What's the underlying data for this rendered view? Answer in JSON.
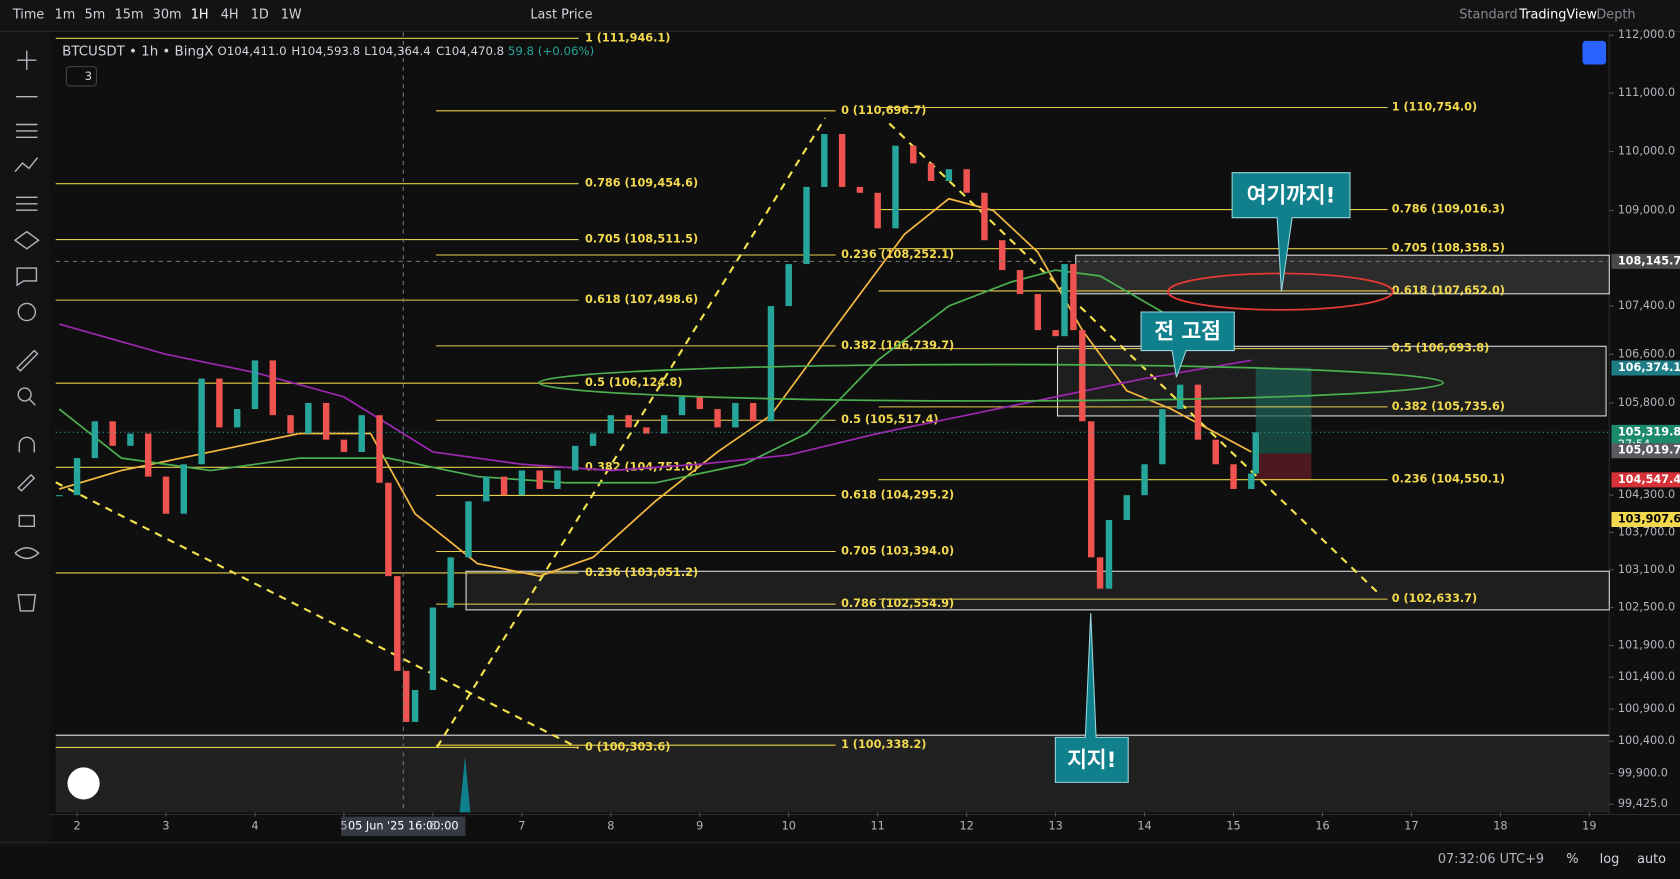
{
  "toolbar": {
    "items": [
      "Time",
      "1m",
      "5m",
      "15m",
      "30m",
      "1H",
      "4H",
      "1D",
      "1W"
    ],
    "price_source": "Last Price",
    "modes": [
      "Standard",
      "TradingView",
      "Depth"
    ]
  },
  "legend": {
    "symbol": "BTCUSDT • 1h • BingX",
    "open": "O104,411.0",
    "high": "H104,593.8",
    "low": "L104,364.4",
    "close": "C104,470.8",
    "change": "59.8 (+0.06%)",
    "indicator_count": 3
  },
  "chart": {
    "type": "candlestick",
    "log_scale": true,
    "xlim": [
      1.76,
      19.2
    ],
    "xticks": [
      2,
      3,
      4,
      5,
      6,
      7,
      8,
      9,
      10,
      11,
      12,
      13,
      14,
      15,
      16,
      17,
      18,
      19
    ],
    "ylim": [
      99300,
      112050
    ],
    "yticks": [
      {
        "value": 112000,
        "label": "112,000.0"
      },
      {
        "value": 111000,
        "label": "111,000.0"
      },
      {
        "value": 110000,
        "label": "110,000.0"
      },
      {
        "value": 109000,
        "label": "109,000.0"
      },
      {
        "value": 107400,
        "label": "107,400.0"
      },
      {
        "value": 106600,
        "label": "106,600.0"
      },
      {
        "value": 105800,
        "label": "105,800.0"
      },
      {
        "value": 104300,
        "label": "104,300.0"
      },
      {
        "value": 103700,
        "label": "103,700.0"
      },
      {
        "value": 103100,
        "label": "103,100.0"
      },
      {
        "value": 102500,
        "label": "102,500.0"
      },
      {
        "value": 101900,
        "label": "101,900.0"
      },
      {
        "value": 101400,
        "label": "101,400.0"
      },
      {
        "value": 100900,
        "label": "100,900.0"
      },
      {
        "value": 100400,
        "label": "100,400.0"
      },
      {
        "value": 99900,
        "label": "99,900.0"
      },
      {
        "value": 99425,
        "label": "99,425.0"
      }
    ],
    "candles": {
      "x": [
        1.8,
        2.0,
        2.2,
        2.4,
        2.6,
        2.8,
        3.0,
        3.2,
        3.4,
        3.6,
        3.8,
        4.0,
        4.2,
        4.4,
        4.6,
        4.8,
        5.0,
        5.2,
        5.4,
        5.5,
        5.6,
        5.7,
        5.8,
        6.0,
        6.2,
        6.4,
        6.6,
        6.8,
        7.0,
        7.2,
        7.4,
        7.6,
        7.8,
        8.0,
        8.2,
        8.4,
        8.6,
        8.8,
        9.0,
        9.2,
        9.4,
        9.6,
        9.8,
        10.0,
        10.2,
        10.4,
        10.6,
        10.8,
        11.0,
        11.2,
        11.4,
        11.6,
        11.8,
        12.0,
        12.2,
        12.4,
        12.6,
        12.8,
        13.0,
        13.1,
        13.2,
        13.3,
        13.4,
        13.5,
        13.6,
        13.8,
        14.0,
        14.2,
        14.4,
        14.6,
        14.8,
        15.0,
        15.2,
        15.25
      ],
      "close": [
        104300,
        104900,
        105500,
        105100,
        105300,
        104600,
        104000,
        104800,
        106200,
        105400,
        105700,
        106500,
        105600,
        105300,
        105800,
        105200,
        105000,
        105600,
        104500,
        103000,
        101500,
        100700,
        101200,
        102500,
        103300,
        104200,
        104600,
        104300,
        104700,
        104400,
        104700,
        105100,
        105300,
        105600,
        105400,
        105300,
        105600,
        105900,
        105700,
        105400,
        105800,
        105500,
        107400,
        108100,
        109400,
        110300,
        109400,
        109300,
        108700,
        110100,
        109800,
        109500,
        109700,
        109300,
        108500,
        108000,
        107600,
        107000,
        106900,
        108100,
        107000,
        105500,
        103300,
        102800,
        103900,
        104300,
        104800,
        105700,
        106100,
        105200,
        104800,
        104400,
        104650,
        105319.8
      ],
      "up_color": "#26a69a",
      "down_color": "#ef5350"
    },
    "moving_averages": [
      {
        "color": "#f5b942",
        "x": [
          1.8,
          2.5,
          3.5,
          4.5,
          5.3,
          5.8,
          6.5,
          7.2,
          7.8,
          8.5,
          9.2,
          9.8,
          10.5,
          11.3,
          11.8,
          12.3,
          12.8,
          13.3,
          13.8,
          14.3,
          15.2
        ],
        "values": [
          104400,
          104700,
          105000,
          105300,
          105300,
          104000,
          103200,
          103000,
          103300,
          104200,
          105000,
          105600,
          107000,
          108600,
          109200,
          109000,
          108300,
          107000,
          106000,
          105700,
          105000
        ]
      },
      {
        "color": "#4caf50",
        "x": [
          1.8,
          2.5,
          3.5,
          4.5,
          5.5,
          6.5,
          7.5,
          8.5,
          9.5,
          10.2,
          11,
          11.8,
          12.5,
          13,
          13.5,
          14.2,
          14.8
        ],
        "values": [
          105700,
          104900,
          104700,
          104900,
          104900,
          104600,
          104500,
          104500,
          104800,
          105300,
          106500,
          107400,
          107800,
          108000,
          107900,
          107300,
          106700
        ]
      },
      {
        "color": "#9c27b0",
        "x": [
          1.8,
          3,
          4,
          5,
          6,
          7,
          8,
          9,
          10,
          11,
          12,
          13,
          14,
          15.2
        ],
        "values": [
          107100,
          106600,
          106300,
          105900,
          105000,
          104800,
          104700,
          104800,
          104950,
          105300,
          105600,
          105900,
          106200,
          106500
        ]
      }
    ],
    "fib": [
      [
        {
          "value": 111946.1,
          "label": "1 (111,946.1)"
        },
        {
          "value": 109454.6,
          "label": "0.786 (109,454.6)"
        },
        {
          "value": 108511.5,
          "label": "0.705 (108,511.5)"
        },
        {
          "value": 107498.6,
          "label": "0.618 (107,498.6)"
        },
        {
          "value": 106124.8,
          "label": "0.5 (106,124.8)"
        },
        {
          "value": 104751.0,
          "label": "0.382 (104,751.0)"
        },
        {
          "value": 103051.2,
          "label": "0.236 (103,051.2)"
        },
        {
          "value": 100303.6,
          "label": "0 (100,303.6)"
        }
      ],
      [
        {
          "value": 110696.7,
          "label": "0 (110,696.7)"
        },
        {
          "value": 108252.1,
          "label": "0.236 (108,252.1)"
        },
        {
          "value": 106739.7,
          "label": "0.382 (106,739.7)"
        },
        {
          "value": 105517.4,
          "label": "0.5 (105,517.4)"
        },
        {
          "value": 104295.2,
          "label": "0.618 (104,295.2)"
        },
        {
          "value": 103394.0,
          "label": "0.705 (103,394.0)"
        },
        {
          "value": 102554.9,
          "label": "0.786 (102,554.9)"
        },
        {
          "value": 100338.2,
          "label": "1 (100,338.2)"
        }
      ],
      [
        {
          "value": 110754.0,
          "label": "1 (110,754.0)"
        },
        {
          "value": 109016.3,
          "label": "0.786 (109,016.3)"
        },
        {
          "value": 108358.5,
          "label": "0.705 (108,358.5)"
        },
        {
          "value": 107652.0,
          "label": "0.618 (107,652.0)"
        },
        {
          "value": 106693.8,
          "label": "0.5 (106,693.8)"
        },
        {
          "value": 105735.6,
          "label": "0.382 (105,735.6)"
        },
        {
          "value": 104550.1,
          "label": "0.236 (104,550.1)"
        },
        {
          "value": 102633.7,
          "label": "0 (102,633.7)"
        }
      ]
    ],
    "price_badges": [
      {
        "value": 108145.7,
        "label": "108,145.7",
        "color": "#4a4a4a"
      },
      {
        "value": 106374.1,
        "label": "106,374.1",
        "color": "#1e7c86"
      },
      {
        "value": 105319.8,
        "label": "105,319.8",
        "color": "#1b8a6b"
      },
      {
        "value": 105019.7,
        "label": "105,019.7",
        "color": "#5a5a60"
      },
      {
        "value": 104547.4,
        "label": "104,547.4",
        "color": "#d7313a"
      },
      {
        "value": 103907.6,
        "label": "103,907.6",
        "color": "#f2d94e"
      }
    ],
    "countdown": "27:54",
    "crosshair": {
      "x": 5.667,
      "label": "05 Jun '25 16:00:00"
    },
    "annotations": [
      "여기까지!",
      "전 고점",
      "지지!"
    ]
  },
  "footer": {
    "clock": "07:32:06 UTC+9",
    "buttons": [
      "%",
      "log",
      "auto"
    ]
  }
}
